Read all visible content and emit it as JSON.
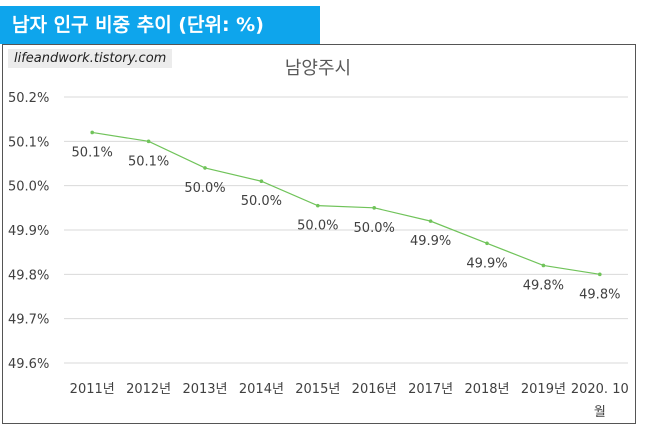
{
  "header": {
    "title": "남자 인구 비중 추이 (단위: %)"
  },
  "watermark": {
    "text": "lifeandwork.tistory.com"
  },
  "colors": {
    "header_bg": "#0ea5ec",
    "line": "#70c35a",
    "grid": "#d9d9d9",
    "text": "#404040"
  },
  "chart_data": {
    "type": "line",
    "title": "남양주시",
    "xlabel": "",
    "ylabel": "",
    "categories": [
      "2011년",
      "2012년",
      "2013년",
      "2014년",
      "2015년",
      "2016년",
      "2017년",
      "2018년",
      "2019년",
      "2020. 10월"
    ],
    "series": [
      {
        "values": [
          50.12,
          50.1,
          50.04,
          50.01,
          49.955,
          49.95,
          49.92,
          49.87,
          49.82,
          49.8
        ],
        "labels": [
          "50.1%",
          "50.1%",
          "50.0%",
          "50.0%",
          "50.0%",
          "50.0%",
          "49.9%",
          "49.9%",
          "49.8%",
          "49.8%"
        ]
      }
    ],
    "ylim": [
      49.6,
      50.2
    ],
    "yticks": [
      "50.2%",
      "50.1%",
      "50.0%",
      "49.9%",
      "49.8%",
      "49.7%",
      "49.6%"
    ],
    "grid": true,
    "legend": "none"
  }
}
